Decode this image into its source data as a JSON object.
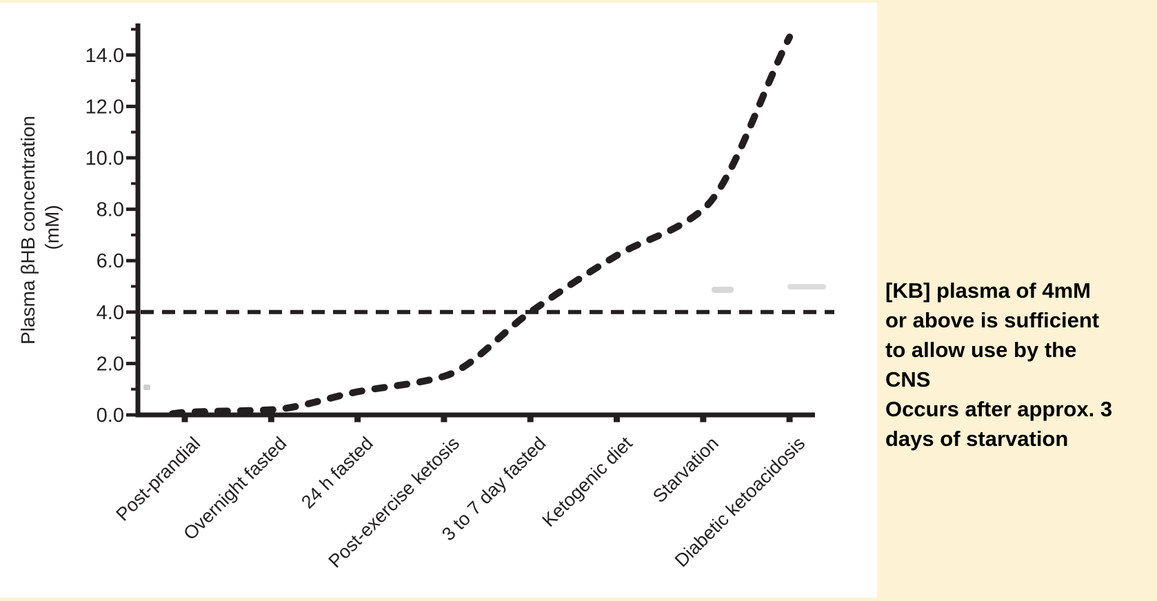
{
  "colors": {
    "page_background": "#fdf2d3",
    "chart_background": "#ffffff",
    "ink": "#231f20",
    "artifact_gray": "#c9c9c9"
  },
  "chart_data": {
    "type": "line",
    "title": "",
    "xlabel": "",
    "ylabel_line1": "Plasma βHB concentration",
    "ylabel_line2": "(mM)",
    "categories": [
      "Post-prandial",
      "Overnight fasted",
      "24 h fasted",
      "Post-exercise ketosis",
      "3 to 7 day fasted",
      "Ketogenic diet",
      "Starvation",
      "Diabetic ketoacidosis"
    ],
    "values": [
      0.1,
      0.2,
      0.9,
      1.5,
      4.0,
      6.2,
      8.0,
      14.7
    ],
    "ylim": [
      0,
      15.2
    ],
    "ytick_values": [
      0,
      2,
      4,
      6,
      8,
      10,
      12,
      14
    ],
    "ytick_labels": [
      "0.0",
      "2.0",
      "4.0",
      "6.0",
      "8.0",
      "10.0",
      "12.0",
      "14.0"
    ],
    "yminor_values": [
      1,
      3,
      5,
      7,
      9,
      11,
      13,
      15
    ],
    "reference_line_value": 4.0,
    "line_style": "dashed",
    "reference_line_style": "dashed",
    "grid": false,
    "legend_position": "none"
  },
  "side_note": {
    "lines": [
      "[KB] plasma of 4mM",
      "or above is sufficient",
      "to allow use by the",
      "CNS",
      "Occurs after approx. 3",
      "days of starvation"
    ]
  }
}
